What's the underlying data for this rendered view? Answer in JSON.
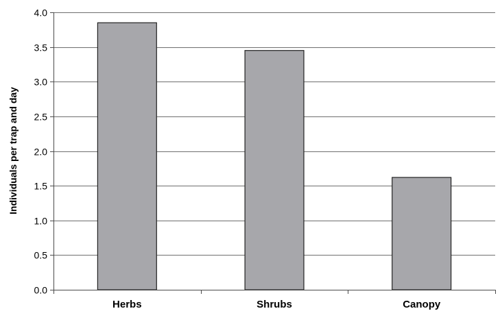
{
  "chart_data": {
    "type": "bar",
    "title": "",
    "xlabel": "",
    "ylabel": "Individuals per trap and day",
    "categories": [
      "Herbs",
      "Shrubs",
      "Canopy"
    ],
    "values": [
      3.85,
      3.45,
      1.62
    ],
    "ylim": [
      0,
      4.0
    ],
    "yticks": [
      "0.0",
      "0.5",
      "1.0",
      "1.5",
      "2.0",
      "2.5",
      "3.0",
      "3.5",
      "4.0"
    ],
    "grid": "horizontal",
    "legend": "none",
    "colors": {
      "bar_fill": "#a7a7ab",
      "bar_stroke": "#222222",
      "grid": "#6e6e6e",
      "axis": "#4a4a4a"
    }
  }
}
